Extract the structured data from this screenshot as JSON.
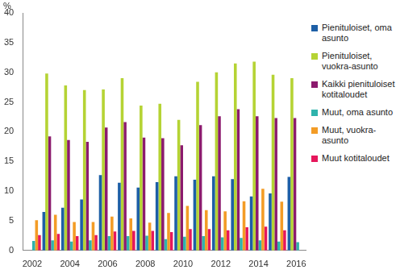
{
  "chart_data": {
    "type": "bar",
    "ylabel": "%",
    "categories": [
      "2002",
      null,
      "2004",
      null,
      "2006",
      null,
      "2008",
      null,
      "2010",
      null,
      "2012",
      null,
      "2014",
      null,
      "2016"
    ],
    "series": [
      {
        "name": "Pienituloiset, oma asunto",
        "color": "#1d5fa6",
        "values": [
          null,
          6.5,
          7.2,
          8.6,
          12.7,
          11.4,
          10.6,
          11.5,
          12.5,
          11.9,
          12.5,
          12.0,
          9.1,
          9.6,
          12.4
        ]
      },
      {
        "name": "Pienituloiset, vuokra-asunto",
        "color": "#b5d334",
        "values": [
          null,
          29.8,
          27.8,
          27.0,
          27.1,
          29.0,
          24.4,
          24.7,
          22.0,
          28.4,
          30.0,
          31.5,
          31.8,
          29.6,
          29.0
        ]
      },
      {
        "name": "Kaikki pienituloiset kotitaloudet",
        "color": "#8c1b6e",
        "values": [
          null,
          19.2,
          18.6,
          18.3,
          20.7,
          21.6,
          19.0,
          18.9,
          17.7,
          21.1,
          22.6,
          23.8,
          22.6,
          22.3,
          22.3
        ]
      },
      {
        "name": "Muut, oma asunto",
        "color": "#2fb3ac",
        "values": [
          1.6,
          1.7,
          1.5,
          1.7,
          2.4,
          2.4,
          2.5,
          1.9,
          2.3,
          2.4,
          2.2,
          2.1,
          1.7,
          1.5,
          1.4
        ]
      },
      {
        "name": "Muut, vuokra-asunto",
        "color": "#f39c26",
        "values": [
          5.1,
          6.0,
          4.8,
          4.8,
          5.7,
          5.4,
          4.7,
          6.3,
          7.5,
          6.8,
          6.6,
          8.3,
          10.4,
          8.2,
          null
        ]
      },
      {
        "name": "Muut kotitaloudet",
        "color": "#e6175c",
        "values": [
          2.6,
          2.8,
          2.4,
          2.6,
          3.2,
          3.3,
          3.3,
          3.1,
          3.6,
          3.6,
          3.4,
          3.9,
          4.0,
          3.4,
          null
        ]
      }
    ],
    "ylim": [
      0,
      40
    ],
    "yticks": [
      0,
      5,
      10,
      15,
      20,
      25,
      30,
      35,
      40
    ],
    "grid": false,
    "legend": "right"
  }
}
